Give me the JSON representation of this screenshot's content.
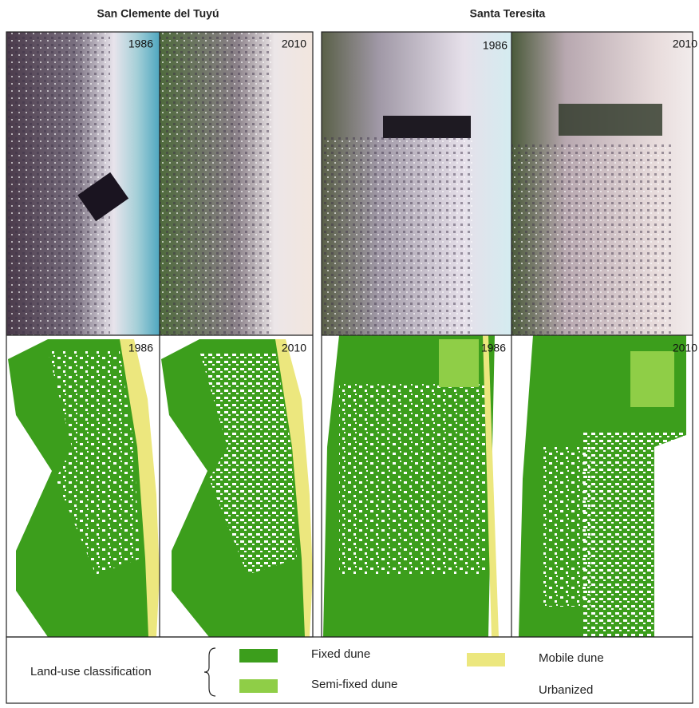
{
  "sites": [
    {
      "name": "San Clemente del Tuyú",
      "satellite": [
        "1986",
        "2010"
      ],
      "classified": [
        "1986",
        "2010"
      ]
    },
    {
      "name": "Santa Teresita",
      "satellite": [
        "1986",
        "2010"
      ],
      "classified": [
        "1986",
        "2010"
      ]
    }
  ],
  "legend": {
    "title": "Land-use classification",
    "items": [
      {
        "label": "Fixed dune",
        "color": "#3c9e1c"
      },
      {
        "label": "Semi-fixed dune",
        "color": "#8fce47"
      },
      {
        "label": "Mobile dune",
        "color": "#ece77e"
      },
      {
        "label": "Urbanized",
        "color": "#ffffff"
      }
    ]
  }
}
